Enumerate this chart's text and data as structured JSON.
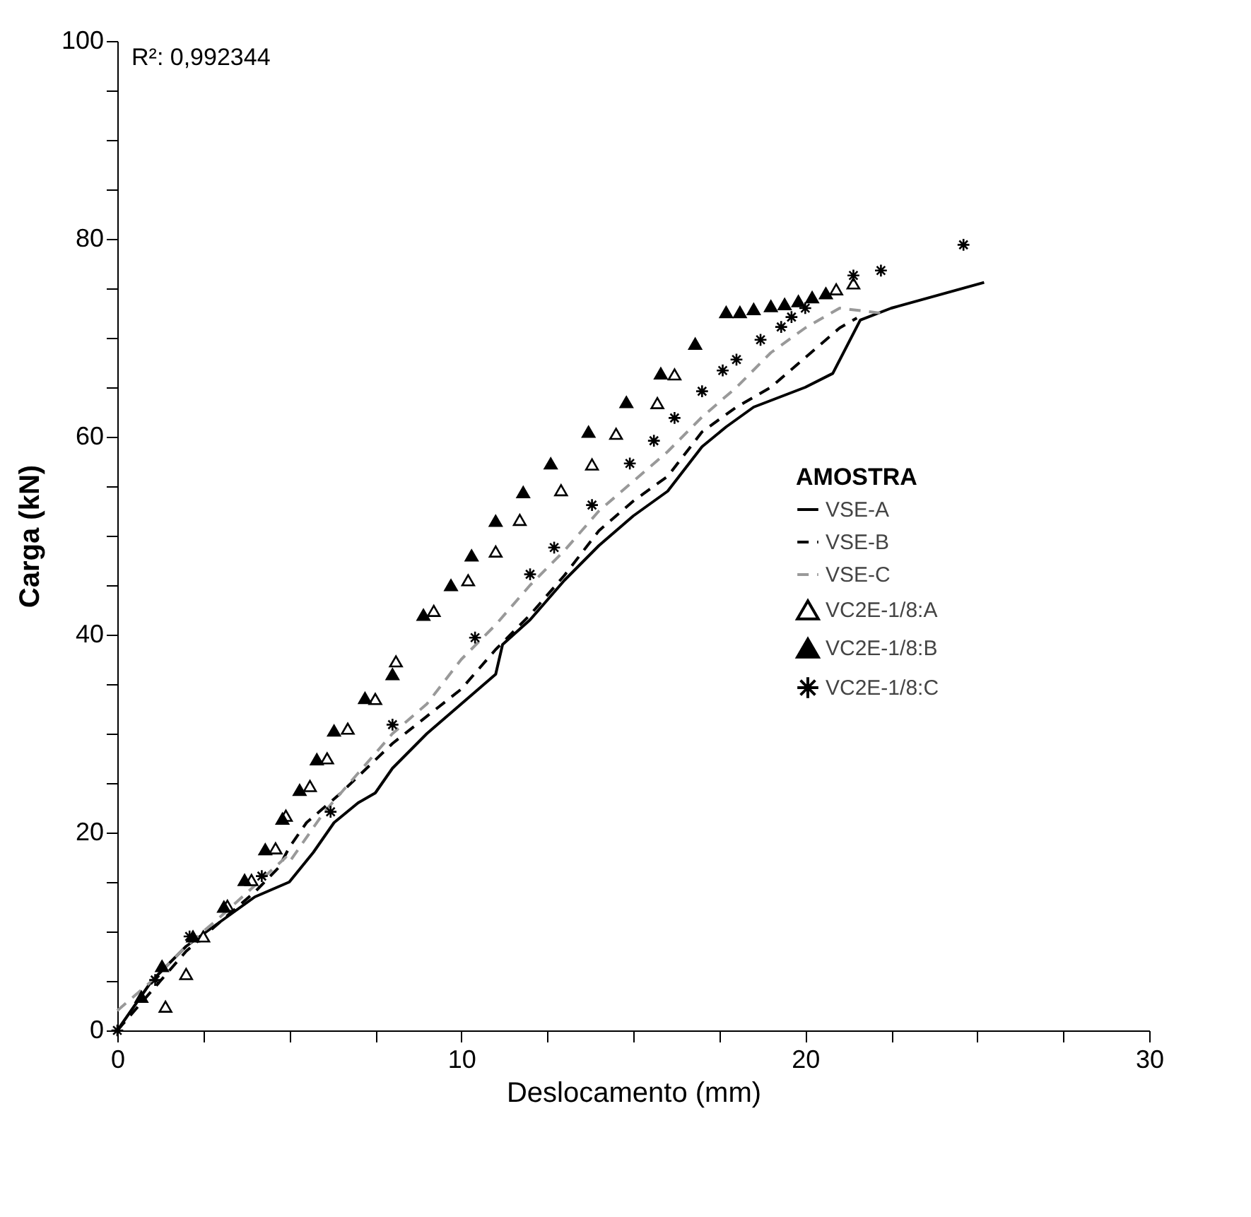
{
  "chart_data": {
    "type": "line",
    "xlabel": "Deslocamento (mm)",
    "ylabel": "Carga (kN)",
    "legend_title": "AMOSTRA",
    "legend": "right",
    "grid": false,
    "annotations": [
      "R²: 0,992344"
    ],
    "xlim": [
      0,
      30
    ],
    "xticks": [
      0,
      {
        "value": 2.5,
        "label": null
      },
      {
        "value": 5,
        "label": null
      },
      {
        "value": 7.5,
        "label": null
      },
      10,
      {
        "value": 12.5,
        "label": null
      },
      {
        "value": 15,
        "label": null
      },
      {
        "value": 17.5,
        "label": null
      },
      20,
      {
        "value": 22.5,
        "label": null
      },
      {
        "value": 25,
        "label": null
      },
      {
        "value": 27.5,
        "label": null
      },
      30
    ],
    "ylim": [
      0,
      100
    ],
    "yticks": [
      0,
      {
        "value": 5,
        "label": null
      },
      {
        "value": 10,
        "label": null
      },
      {
        "value": 15,
        "label": null
      },
      20,
      {
        "value": 25,
        "label": null
      },
      {
        "value": 30,
        "label": null
      },
      {
        "value": 35,
        "label": null
      },
      40,
      {
        "value": 45,
        "label": null
      },
      {
        "value": 50,
        "label": null
      },
      {
        "value": 55,
        "label": null
      },
      60,
      {
        "value": 65,
        "label": null
      },
      {
        "value": 70,
        "label": null
      },
      {
        "value": 75,
        "label": null
      },
      80,
      {
        "value": 85,
        "label": null
      },
      {
        "value": 90,
        "label": null
      },
      {
        "value": 95,
        "label": null
      },
      100
    ],
    "series": [
      {
        "name": "VSE-A",
        "type": "line",
        "color": "#000000",
        "line_style": "solid",
        "marker": "none",
        "x": [
          0,
          1,
          2,
          3,
          4,
          5,
          5.7,
          6.3,
          7,
          7.5,
          8,
          9,
          10,
          10.5,
          11,
          11.2,
          12,
          13,
          14,
          15,
          16,
          17,
          17.7,
          18.5,
          20,
          20.8,
          21.6,
          22.5,
          25.2
        ],
        "values": [
          0,
          5,
          8.5,
          11,
          13.5,
          15,
          18,
          21,
          23,
          24,
          26.5,
          30,
          33,
          34.5,
          36,
          39,
          41.5,
          45.5,
          49,
          52,
          54.5,
          59,
          61,
          63,
          65,
          66.4,
          71.8,
          73,
          75.6
        ]
      },
      {
        "name": "VSE-B",
        "type": "line",
        "color": "#000000",
        "line_style": "dashed",
        "marker": "none",
        "x": [
          0,
          2,
          3,
          4,
          4.7,
          5,
          5.5,
          6.5,
          8,
          10,
          11,
          12,
          13,
          14,
          15,
          16,
          17,
          18,
          19,
          20,
          21,
          21.5
        ],
        "values": [
          0,
          8,
          11,
          14,
          16.5,
          18.5,
          21,
          24,
          29,
          34.5,
          38.5,
          42,
          46,
          50.5,
          53.5,
          56,
          60.5,
          63,
          65,
          68,
          71,
          72
        ]
      },
      {
        "name": "VSE-C",
        "type": "line",
        "color": "#999999",
        "line_style": "dashed",
        "marker": "none",
        "x": [
          0,
          1,
          2,
          3,
          4.9,
          5,
          6,
          7,
          8,
          9,
          10,
          11,
          12,
          13,
          14,
          15,
          16,
          17,
          18,
          19,
          20,
          21,
          22.2
        ],
        "values": [
          2,
          5,
          8.5,
          11.5,
          17.5,
          17,
          22,
          26,
          30,
          33,
          37.5,
          41,
          45,
          48.5,
          52.5,
          55.5,
          58.5,
          62,
          65,
          68.5,
          71,
          73,
          72.5
        ]
      },
      {
        "name": "VC2E-1/8:A",
        "type": "scatter",
        "color": "#ffffff",
        "marker": "triangle",
        "x": [
          1.4,
          2.0,
          2.5,
          3.2,
          3.9,
          4.6,
          4.9,
          5.6,
          6.1,
          6.7,
          7.5,
          8.1,
          9.2,
          10.2,
          11.0,
          11.7,
          12.9,
          13.8,
          14.5,
          15.7,
          16.2,
          20.9,
          21.4
        ],
        "values": [
          2.4,
          5.7,
          9.5,
          12.6,
          15.2,
          18.4,
          21.7,
          24.7,
          27.5,
          30.5,
          33.5,
          37.3,
          42.4,
          45.5,
          48.4,
          51.6,
          54.6,
          57.2,
          60.3,
          63.4,
          66.3,
          74.9,
          75.5
        ]
      },
      {
        "name": "VC2E-1/8:B",
        "type": "scatter",
        "color": "#000000",
        "marker": "triangle",
        "x": [
          0.7,
          1.3,
          2.2,
          3.1,
          3.7,
          4.3,
          4.8,
          5.3,
          5.8,
          6.3,
          7.2,
          8.0,
          8.9,
          9.7,
          10.3,
          11.0,
          11.8,
          12.6,
          13.7,
          14.8,
          15.8,
          16.8,
          17.7,
          18.1,
          18.5,
          19.0,
          19.4,
          19.8,
          20.2,
          20.6
        ],
        "values": [
          3.4,
          6.5,
          9.5,
          12.5,
          15.2,
          18.3,
          21.4,
          24.3,
          27.4,
          30.3,
          33.6,
          36.0,
          42.0,
          45.0,
          48.0,
          51.5,
          54.4,
          57.3,
          60.5,
          63.5,
          66.4,
          69.4,
          72.6,
          72.6,
          72.9,
          73.2,
          73.4,
          73.7,
          74.1,
          74.5
        ]
      },
      {
        "name": "VC2E-1/8:C",
        "type": "scatter",
        "color": "#000000",
        "marker": "cross",
        "x": [
          0,
          1.1,
          2.1,
          4.2,
          6.2,
          8.0,
          10.4,
          12.0,
          12.7,
          13.8,
          14.9,
          15.6,
          16.2,
          17.0,
          17.6,
          18.0,
          18.7,
          19.3,
          19.6,
          20.0,
          21.4,
          22.2,
          24.6
        ],
        "values": [
          0,
          5.1,
          9.5,
          15.6,
          22.1,
          30.9,
          39.7,
          46.1,
          48.8,
          53.1,
          57.3,
          59.6,
          61.9,
          64.6,
          66.7,
          67.8,
          69.8,
          71.1,
          72.1,
          73.0,
          76.3,
          76.8,
          79.4
        ]
      }
    ]
  }
}
